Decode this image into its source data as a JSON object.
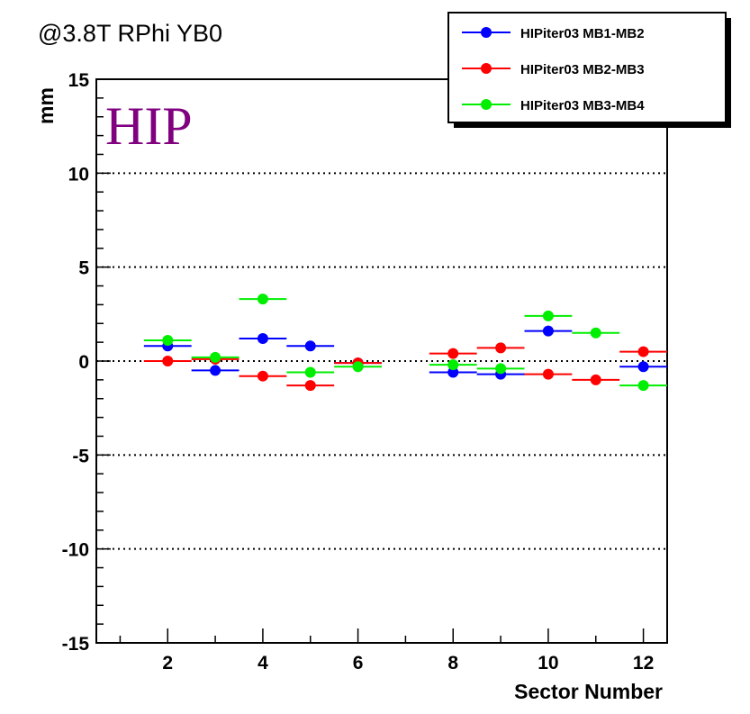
{
  "chart_data": {
    "type": "scatter",
    "title": "@3.8T RPhi YB0",
    "annotation": "HIP",
    "xlabel": "Sector Number",
    "ylabel": "mm",
    "xlim": [
      0.5,
      12.5
    ],
    "ylim": [
      -15,
      15
    ],
    "x_ticks": [
      2,
      4,
      6,
      8,
      10,
      12
    ],
    "y_ticks": [
      -15,
      -10,
      -5,
      0,
      5,
      10,
      15
    ],
    "grid": "horizontal dotted at major y ticks",
    "legend_position": "top-right",
    "x_error_halfwidth": 0.5,
    "series": [
      {
        "name": "HIPiter03 MB1-MB2",
        "color": "#0000ff",
        "points": [
          {
            "x": 2,
            "y": 0.8
          },
          {
            "x": 3,
            "y": -0.5
          },
          {
            "x": 4,
            "y": 1.2
          },
          {
            "x": 5,
            "y": 0.8
          },
          {
            "x": 6,
            "y": -0.1
          },
          {
            "x": 8,
            "y": -0.6
          },
          {
            "x": 9,
            "y": -0.7
          },
          {
            "x": 10,
            "y": 1.6
          },
          {
            "x": 12,
            "y": -0.3
          }
        ]
      },
      {
        "name": "HIPiter03 MB2-MB3",
        "color": "#ff0000",
        "points": [
          {
            "x": 2,
            "y": 0.0
          },
          {
            "x": 3,
            "y": 0.1
          },
          {
            "x": 4,
            "y": -0.8
          },
          {
            "x": 5,
            "y": -1.3
          },
          {
            "x": 6,
            "y": -0.1
          },
          {
            "x": 8,
            "y": 0.4
          },
          {
            "x": 9,
            "y": 0.7
          },
          {
            "x": 10,
            "y": -0.7
          },
          {
            "x": 11,
            "y": -1.0
          },
          {
            "x": 12,
            "y": 0.5
          }
        ]
      },
      {
        "name": "HIPiter03 MB3-MB4",
        "color": "#00ee00",
        "points": [
          {
            "x": 2,
            "y": 1.1
          },
          {
            "x": 3,
            "y": 0.2
          },
          {
            "x": 4,
            "y": 3.3
          },
          {
            "x": 5,
            "y": -0.6
          },
          {
            "x": 6,
            "y": -0.3
          },
          {
            "x": 8,
            "y": -0.2
          },
          {
            "x": 9,
            "y": -0.4
          },
          {
            "x": 10,
            "y": 2.4
          },
          {
            "x": 11,
            "y": 1.5
          },
          {
            "x": 12,
            "y": -1.3
          }
        ]
      }
    ]
  }
}
